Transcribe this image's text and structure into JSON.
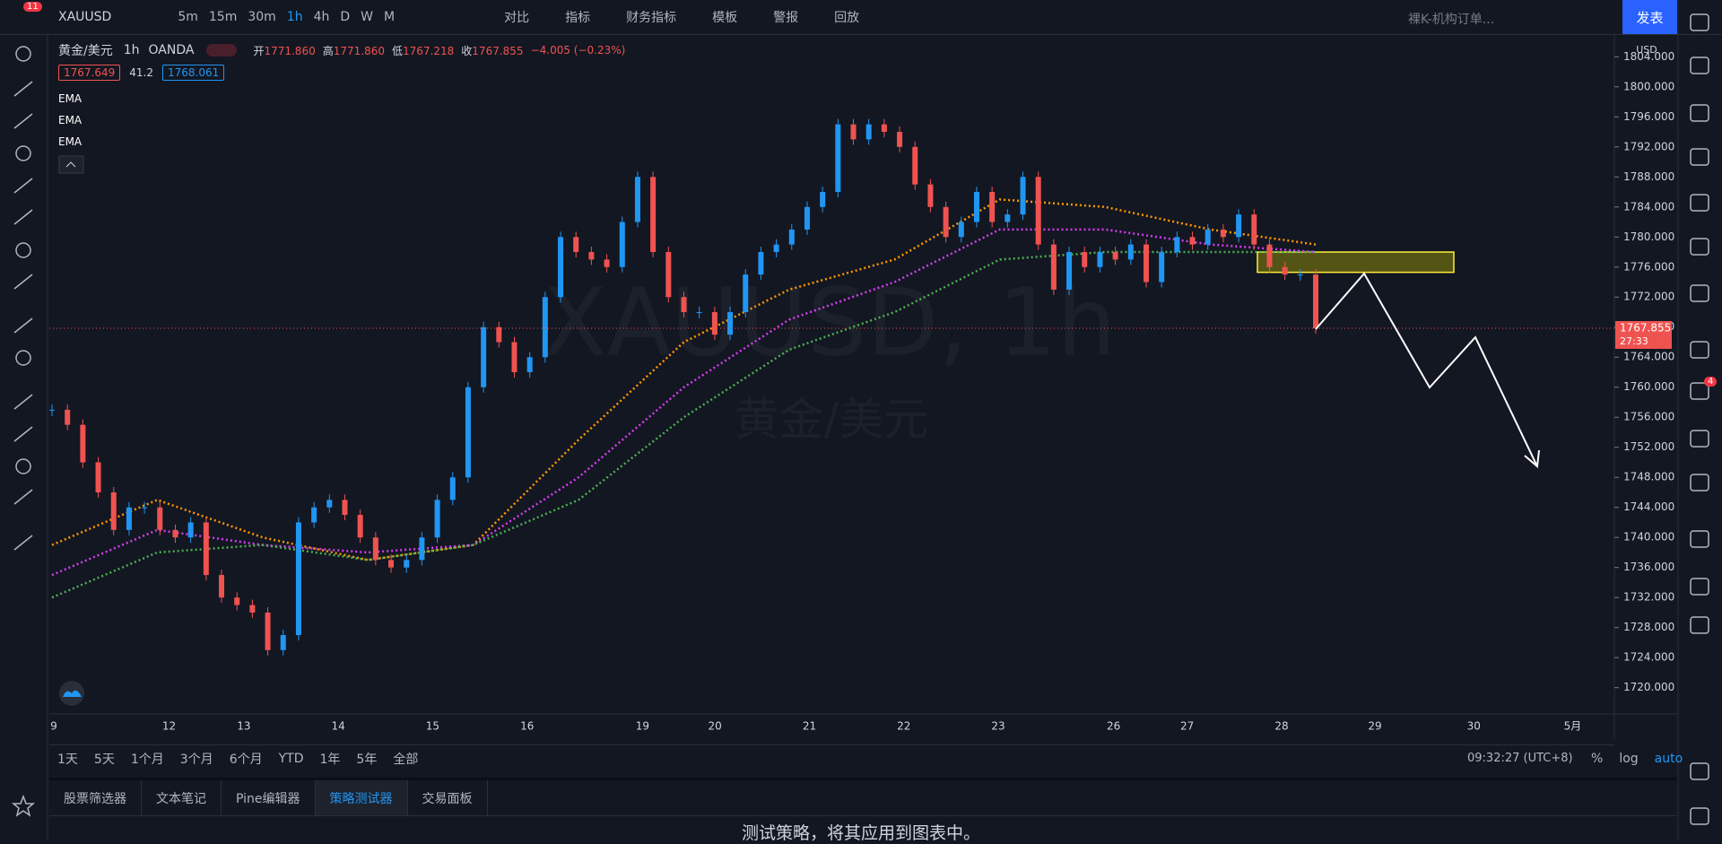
{
  "toolbar": {
    "badge": "11",
    "symbol": "XAUUSD",
    "intervals": [
      "5m",
      "15m",
      "30m",
      "1h",
      "4h",
      "D",
      "W",
      "M"
    ],
    "buttons": [
      "对比",
      "指标",
      "财务指标",
      "模板",
      "警报",
      "回放"
    ],
    "layout_name": "裸K-机构订单...",
    "publish": "发表"
  },
  "legend": {
    "name": "黄金/美元",
    "interval": "1h",
    "exchange": "OANDA",
    "ohlc": [
      {
        "label": "开",
        "value": "1771.860"
      },
      {
        "label": "高",
        "value": "1771.860"
      },
      {
        "label": "低",
        "value": "1767.218"
      },
      {
        "label": "收",
        "value": "1767.855"
      }
    ],
    "change": "−4.005 (−0.23%)",
    "bid": "1767.649",
    "spread": "41.2",
    "ask": "1768.061",
    "indicators": [
      "EMA",
      "EMA",
      "EMA"
    ]
  },
  "chart_data": {
    "type": "candlestick",
    "watermark": "XAUUSD, 1h",
    "watermark_sub": "黄金/美元",
    "currency": "USD",
    "close": [
      1757,
      1755,
      1750,
      1746,
      1741,
      1744,
      1744,
      1741,
      1740,
      1742,
      1735,
      1732,
      1731,
      1730,
      1725,
      1727,
      1742,
      1744,
      1745,
      1743,
      1740,
      1737,
      1736,
      1737,
      1740,
      1745,
      1748,
      1760,
      1768,
      1766,
      1762,
      1764,
      1772,
      1780,
      1778,
      1777,
      1776,
      1782,
      1788,
      1778,
      1772,
      1770,
      1770,
      1767,
      1770,
      1775,
      1778,
      1779,
      1781,
      1784,
      1786,
      1795,
      1793,
      1795,
      1794,
      1792,
      1787,
      1784,
      1780,
      1782,
      1786,
      1782,
      1783,
      1788,
      1779,
      1773,
      1778,
      1776,
      1778,
      1777,
      1779,
      1774,
      1778,
      1780,
      1779,
      1781,
      1780,
      1783,
      1779,
      1776,
      1775,
      1775,
      1767.855
    ],
    "up_color": "#2196f3",
    "down_color": "#ef5350",
    "emas": [
      {
        "color": "#ff9800",
        "values": [
          1739,
          1745,
          1740,
          1737,
          1739,
          1753,
          1766,
          1773,
          1777,
          1785,
          1784,
          1781,
          1779
        ]
      },
      {
        "color": "#d63df0",
        "values": [
          1735,
          1741,
          1739,
          1738,
          1739,
          1748,
          1760,
          1769,
          1774,
          1781,
          1781,
          1779,
          1778
        ]
      },
      {
        "color": "#4caf50",
        "values": [
          1732,
          1738,
          1739,
          1737,
          1739,
          1745,
          1756,
          1765,
          1770,
          1777,
          1778,
          1778,
          1778
        ]
      }
    ],
    "zone": [
      1775.3,
      1778
    ],
    "last_price": 1767.855,
    "countdown": "27:33",
    "x_labels": [
      "9",
      "12",
      "13",
      "14",
      "15",
      "16",
      "19",
      "20",
      "21",
      "22",
      "23",
      "26",
      "27",
      "28",
      "29",
      "30",
      "5月"
    ],
    "ylim": [
      1716.5,
      1806.9
    ],
    "yticks": [
      {
        "value": 1720,
        "label": "1720.000"
      },
      {
        "value": 1724,
        "label": "1724.000"
      },
      {
        "value": 1728,
        "label": "1728.000"
      },
      {
        "value": 1732,
        "label": "1732.000"
      },
      {
        "value": 1736,
        "label": "1736.000"
      },
      {
        "value": 1740,
        "label": "1740.000"
      },
      {
        "value": 1744,
        "label": "1744.000"
      },
      {
        "value": 1748,
        "label": "1748.000"
      },
      {
        "value": 1752,
        "label": "1752.000"
      },
      {
        "value": 1756,
        "label": "1756.000"
      },
      {
        "value": 1760,
        "label": "1760.000"
      },
      {
        "value": 1764,
        "label": "1764.000"
      },
      {
        "value": 1768,
        "label": "1768.000"
      },
      {
        "value": 1772,
        "label": "1772.000"
      },
      {
        "value": 1776,
        "label": "1776.000"
      },
      {
        "value": 1780,
        "label": "1780.000"
      },
      {
        "value": 1784,
        "label": "1784.000"
      },
      {
        "value": 1788,
        "label": "1788.000"
      },
      {
        "value": 1792,
        "label": "1792.000"
      },
      {
        "value": 1796,
        "label": "1796.000"
      },
      {
        "value": 1800,
        "label": "1800.000"
      },
      {
        "value": 1804,
        "label": "1804.000"
      }
    ]
  },
  "range_bar": {
    "ranges": [
      "1天",
      "5天",
      "1个月",
      "3个月",
      "6个月",
      "YTD",
      "1年",
      "5年",
      "全部"
    ],
    "clock": "09:32:27 (UTC+8)",
    "options": [
      "%",
      "log",
      "auto"
    ]
  },
  "bottom_panel": {
    "tabs": [
      "股票筛选器",
      "文本笔记",
      "Pine编辑器",
      "策略测试器",
      "交易面板"
    ],
    "message": "测试策略，将其应用到图表中。"
  },
  "sidebar": {
    "badge": "4"
  }
}
